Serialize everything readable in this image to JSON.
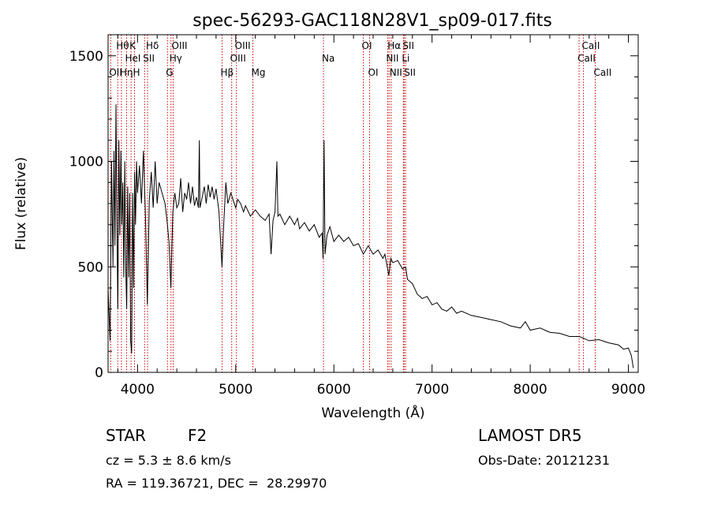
{
  "figure": {
    "title": "spec-56293-GAC118N28V1_sp09-017.fits",
    "object_class": "STAR",
    "subclass": "F2",
    "survey": "LAMOST DR5",
    "redshift_text": "cz = 5.3 ± 8.6 km/s",
    "obs_date_text": "Obs-Date: 20121231",
    "coords_text": "RA = 119.36721, DEC =  28.29970"
  },
  "chart_data": {
    "type": "line",
    "title": "spec-56293-GAC118N28V1_sp09-017.fits",
    "xlabel": "Wavelength (Å)",
    "ylabel": "Flux (relative)",
    "xlim": [
      3700,
      9100
    ],
    "ylim": [
      0,
      1600
    ],
    "xticks": [
      4000,
      5000,
      6000,
      7000,
      8000,
      9000
    ],
    "yticks": [
      0,
      500,
      1000,
      1500
    ],
    "grid": false,
    "colors": {
      "line": "#000000",
      "marker": "#cc0000"
    },
    "series": [
      {
        "values": [
          [
            3700,
            400
          ],
          [
            3720,
            150
          ],
          [
            3735,
            1000
          ],
          [
            3750,
            500
          ],
          [
            3760,
            1050
          ],
          [
            3770,
            600
          ],
          [
            3780,
            1270
          ],
          [
            3790,
            700
          ],
          [
            3800,
            300
          ],
          [
            3810,
            1100
          ],
          [
            3820,
            650
          ],
          [
            3830,
            1050
          ],
          [
            3840,
            700
          ],
          [
            3850,
            900
          ],
          [
            3860,
            450
          ],
          [
            3870,
            1000
          ],
          [
            3880,
            500
          ],
          [
            3890,
            300
          ],
          [
            3900,
            880
          ],
          [
            3910,
            450
          ],
          [
            3920,
            850
          ],
          [
            3930,
            150
          ],
          [
            3940,
            90
          ],
          [
            3950,
            850
          ],
          [
            3960,
            400
          ],
          [
            3970,
            950
          ],
          [
            3980,
            700
          ],
          [
            3990,
            1000
          ],
          [
            4000,
            850
          ],
          [
            4020,
            980
          ],
          [
            4040,
            800
          ],
          [
            4060,
            1050
          ],
          [
            4080,
            750
          ],
          [
            4100,
            320
          ],
          [
            4120,
            820
          ],
          [
            4140,
            950
          ],
          [
            4160,
            780
          ],
          [
            4180,
            1000
          ],
          [
            4200,
            800
          ],
          [
            4220,
            900
          ],
          [
            4250,
            850
          ],
          [
            4280,
            800
          ],
          [
            4300,
            720
          ],
          [
            4320,
            620
          ],
          [
            4340,
            400
          ],
          [
            4360,
            760
          ],
          [
            4380,
            850
          ],
          [
            4400,
            780
          ],
          [
            4420,
            800
          ],
          [
            4440,
            920
          ],
          [
            4460,
            760
          ],
          [
            4480,
            850
          ],
          [
            4500,
            820
          ],
          [
            4520,
            900
          ],
          [
            4540,
            800
          ],
          [
            4560,
            880
          ],
          [
            4580,
            790
          ],
          [
            4600,
            830
          ],
          [
            4620,
            780
          ],
          [
            4630,
            1100
          ],
          [
            4635,
            780
          ],
          [
            4650,
            810
          ],
          [
            4680,
            880
          ],
          [
            4700,
            800
          ],
          [
            4720,
            890
          ],
          [
            4740,
            830
          ],
          [
            4760,
            880
          ],
          [
            4780,
            820
          ],
          [
            4800,
            870
          ],
          [
            4830,
            760
          ],
          [
            4860,
            500
          ],
          [
            4880,
            720
          ],
          [
            4900,
            900
          ],
          [
            4920,
            800
          ],
          [
            4950,
            850
          ],
          [
            5000,
            780
          ],
          [
            5020,
            820
          ],
          [
            5050,
            800
          ],
          [
            5080,
            760
          ],
          [
            5100,
            790
          ],
          [
            5150,
            740
          ],
          [
            5200,
            770
          ],
          [
            5250,
            740
          ],
          [
            5300,
            720
          ],
          [
            5340,
            750
          ],
          [
            5360,
            560
          ],
          [
            5380,
            720
          ],
          [
            5400,
            760
          ],
          [
            5420,
            1000
          ],
          [
            5430,
            740
          ],
          [
            5450,
            750
          ],
          [
            5500,
            700
          ],
          [
            5550,
            740
          ],
          [
            5600,
            700
          ],
          [
            5630,
            730
          ],
          [
            5650,
            680
          ],
          [
            5700,
            710
          ],
          [
            5750,
            670
          ],
          [
            5800,
            700
          ],
          [
            5850,
            640
          ],
          [
            5880,
            660
          ],
          [
            5890,
            540
          ],
          [
            5900,
            1100
          ],
          [
            5910,
            560
          ],
          [
            5930,
            650
          ],
          [
            5960,
            690
          ],
          [
            6000,
            620
          ],
          [
            6050,
            650
          ],
          [
            6100,
            620
          ],
          [
            6150,
            640
          ],
          [
            6200,
            600
          ],
          [
            6250,
            610
          ],
          [
            6300,
            560
          ],
          [
            6350,
            600
          ],
          [
            6400,
            560
          ],
          [
            6450,
            580
          ],
          [
            6500,
            540
          ],
          [
            6520,
            560
          ],
          [
            6560,
            460
          ],
          [
            6580,
            540
          ],
          [
            6600,
            520
          ],
          [
            6650,
            530
          ],
          [
            6700,
            490
          ],
          [
            6730,
            500
          ],
          [
            6750,
            440
          ],
          [
            6800,
            420
          ],
          [
            6850,
            370
          ],
          [
            6900,
            350
          ],
          [
            6950,
            360
          ],
          [
            7000,
            320
          ],
          [
            7050,
            330
          ],
          [
            7100,
            300
          ],
          [
            7150,
            290
          ],
          [
            7200,
            310
          ],
          [
            7250,
            280
          ],
          [
            7300,
            290
          ],
          [
            7400,
            270
          ],
          [
            7500,
            260
          ],
          [
            7600,
            250
          ],
          [
            7700,
            240
          ],
          [
            7800,
            220
          ],
          [
            7900,
            210
          ],
          [
            7950,
            240
          ],
          [
            8000,
            200
          ],
          [
            8100,
            210
          ],
          [
            8200,
            190
          ],
          [
            8300,
            185
          ],
          [
            8400,
            170
          ],
          [
            8500,
            170
          ],
          [
            8600,
            150
          ],
          [
            8700,
            155
          ],
          [
            8800,
            140
          ],
          [
            8900,
            130
          ],
          [
            8950,
            110
          ],
          [
            9000,
            115
          ],
          [
            9030,
            80
          ],
          [
            9050,
            20
          ]
        ]
      }
    ],
    "line_markers": [
      {
        "label": "OII",
        "wavelength": 3727,
        "row": 3
      },
      {
        "label": "Hθ",
        "wavelength": 3798,
        "row": 1
      },
      {
        "label": "Hη",
        "wavelength": 3836,
        "row": 3
      },
      {
        "label": "HeI",
        "wavelength": 3889,
        "row": 2
      },
      {
        "label": "K",
        "wavelength": 3934,
        "row": 1
      },
      {
        "label": "H",
        "wavelength": 3969,
        "row": 3
      },
      {
        "label": "SII",
        "wavelength": 4072,
        "row": 2
      },
      {
        "label": "Hδ",
        "wavelength": 4102,
        "row": 1
      },
      {
        "label": "G",
        "wavelength": 4305,
        "row": 3
      },
      {
        "label": "Hγ",
        "wavelength": 4341,
        "row": 2
      },
      {
        "label": "OIII",
        "wavelength": 4363,
        "row": 1
      },
      {
        "label": "Hβ",
        "wavelength": 4861,
        "row": 3
      },
      {
        "label": "OIII",
        "wavelength": 4959,
        "row": 2
      },
      {
        "label": "OIII",
        "wavelength": 5007,
        "row": 1
      },
      {
        "label": "Mg",
        "wavelength": 5175,
        "row": 3
      },
      {
        "label": "Na",
        "wavelength": 5894,
        "row": 2
      },
      {
        "label": "OI",
        "wavelength": 6300,
        "row": 1
      },
      {
        "label": "OI",
        "wavelength": 6364,
        "row": 3
      },
      {
        "label": "NII",
        "wavelength": 6548,
        "row": 2
      },
      {
        "label": "Hα",
        "wavelength": 6563,
        "row": 1
      },
      {
        "label": "NII",
        "wavelength": 6583,
        "row": 3
      },
      {
        "label": "Li",
        "wavelength": 6708,
        "row": 2
      },
      {
        "label": "SII",
        "wavelength": 6716,
        "row": 1
      },
      {
        "label": "SII",
        "wavelength": 6731,
        "row": 3
      },
      {
        "label": "CaII",
        "wavelength": 8498,
        "row": 2
      },
      {
        "label": "CaII",
        "wavelength": 8542,
        "row": 1
      },
      {
        "label": "CaII",
        "wavelength": 8662,
        "row": 3
      }
    ]
  }
}
